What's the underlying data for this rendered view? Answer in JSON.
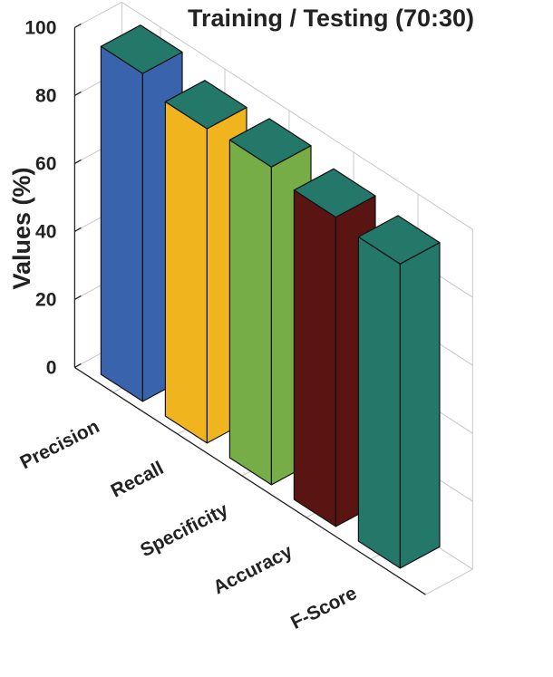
{
  "chart_data": {
    "type": "bar",
    "title": "Training / Testing (70:30)",
    "ylabel": "Values (%)",
    "xlabel": "",
    "ylim": [
      0,
      100
    ],
    "yticks": [
      0,
      20,
      40,
      60,
      80,
      100
    ],
    "grid": true,
    "categories": [
      "Precision",
      "Recall",
      "Specificity",
      "Accuracy",
      "F-Score"
    ],
    "values": [
      96.5,
      92.5,
      93.5,
      91.0,
      89.5
    ],
    "colors": [
      "#3a63ad",
      "#f0b51e",
      "#77ad47",
      "#5a1512",
      "#23786a"
    ],
    "top_color": "#23786a"
  }
}
